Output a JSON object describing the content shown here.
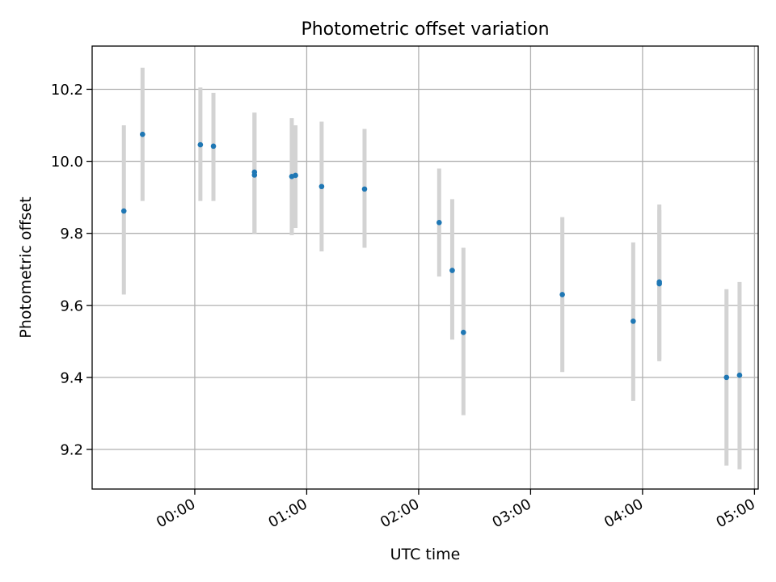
{
  "chart_data": {
    "type": "scatter",
    "title": "Photometric offset variation",
    "xlabel": "UTC time",
    "ylabel": "Photometric offset",
    "x_ticks": [
      {
        "value": "00:00",
        "label": "00:00"
      },
      {
        "value": "01:00",
        "label": "01:00"
      },
      {
        "value": "02:00",
        "label": "02:00"
      },
      {
        "value": "03:00",
        "label": "03:00"
      },
      {
        "value": "04:00",
        "label": "04:00"
      },
      {
        "value": "05:00",
        "label": "05:00"
      }
    ],
    "y_ticks": [
      9.2,
      9.4,
      9.6,
      9.8,
      10.0,
      10.2
    ],
    "y_tick_labels": [
      "9.2",
      "9.4",
      "9.6",
      "9.8",
      "10.0",
      "10.2"
    ],
    "xlim": [
      "23:05",
      "05:02"
    ],
    "ylim": [
      9.09,
      10.32
    ],
    "grid": true,
    "series": [
      {
        "marker_color": "#1f77b4",
        "error_bar_color": "#d3d3d3",
        "points": [
          {
            "x": "23:22",
            "y": 9.862,
            "y_low": 9.63,
            "y_high": 10.1
          },
          {
            "x": "23:32",
            "y": 10.075,
            "y_low": 9.89,
            "y_high": 10.26
          },
          {
            "x": "00:03",
            "y": 10.046,
            "y_low": 9.89,
            "y_high": 10.205
          },
          {
            "x": "00:10",
            "y": 10.042,
            "y_low": 9.89,
            "y_high": 10.19
          },
          {
            "x": "00:32",
            "y": 9.962,
            "y_low": 9.8,
            "y_high": 10.135
          },
          {
            "x": "00:32",
            "y": 9.97,
            "y_low": 9.8,
            "y_high": 10.135
          },
          {
            "x": "00:52",
            "y": 9.958,
            "y_low": 9.795,
            "y_high": 10.12
          },
          {
            "x": "00:54",
            "y": 9.961,
            "y_low": 9.815,
            "y_high": 10.1
          },
          {
            "x": "01:08",
            "y": 9.93,
            "y_low": 9.75,
            "y_high": 10.11
          },
          {
            "x": "01:31",
            "y": 9.923,
            "y_low": 9.76,
            "y_high": 10.09
          },
          {
            "x": "02:11",
            "y": 9.83,
            "y_low": 9.68,
            "y_high": 9.98
          },
          {
            "x": "02:18",
            "y": 9.697,
            "y_low": 9.505,
            "y_high": 9.895
          },
          {
            "x": "02:24",
            "y": 9.525,
            "y_low": 9.295,
            "y_high": 9.76
          },
          {
            "x": "03:17",
            "y": 9.63,
            "y_low": 9.415,
            "y_high": 9.845
          },
          {
            "x": "03:55",
            "y": 9.556,
            "y_low": 9.335,
            "y_high": 9.775
          },
          {
            "x": "04:09",
            "y": 9.66,
            "y_low": 9.445,
            "y_high": 9.865
          },
          {
            "x": "04:09",
            "y": 9.665,
            "y_low": 9.45,
            "y_high": 9.88
          },
          {
            "x": "04:45",
            "y": 9.4,
            "y_low": 9.155,
            "y_high": 9.645
          },
          {
            "x": "04:52",
            "y": 9.406,
            "y_low": 9.145,
            "y_high": 9.665
          }
        ]
      }
    ]
  }
}
